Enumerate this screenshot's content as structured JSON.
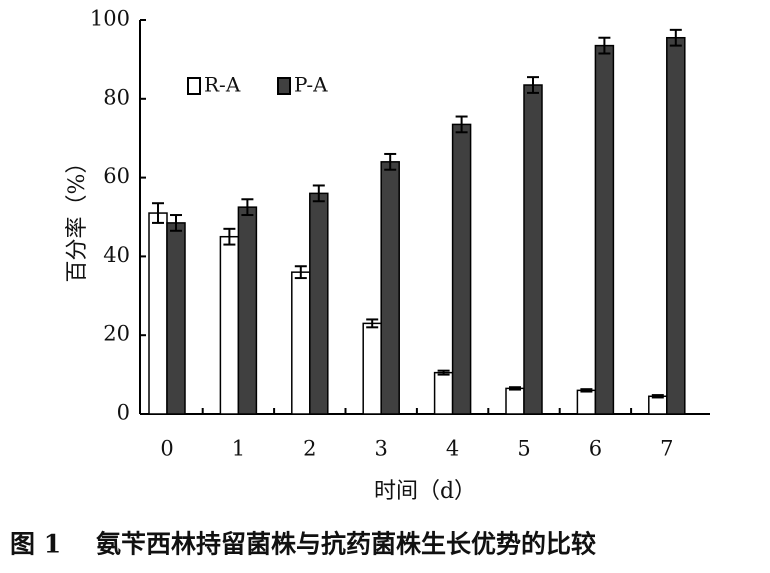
{
  "chart_data": {
    "type": "bar",
    "figure_label": "图 1",
    "title": "氨苄西林持留菌株与抗药菌株生长优势的比较",
    "x_label": "时间（d）",
    "y_label": "百分率（%）",
    "categories": [
      "0",
      "1",
      "2",
      "3",
      "4",
      "5",
      "6",
      "7"
    ],
    "series": [
      {
        "name": "R-A",
        "color": "#ffffff",
        "values": [
          51,
          45,
          36,
          23,
          10.5,
          6.5,
          6,
          4.5
        ],
        "errors": [
          2.5,
          2,
          1.5,
          1,
          0.5,
          0.3,
          0.3,
          0.3
        ]
      },
      {
        "name": "P-A",
        "color": "#404040",
        "values": [
          48.5,
          52.5,
          56,
          64,
          73.5,
          83.5,
          93.5,
          95.5
        ],
        "errors": [
          2,
          2,
          2,
          2,
          2,
          2,
          2,
          2
        ]
      }
    ],
    "ylim": [
      0,
      100
    ],
    "yticks": [
      0,
      20,
      40,
      60,
      80,
      100
    ],
    "legend": "upper-left"
  }
}
